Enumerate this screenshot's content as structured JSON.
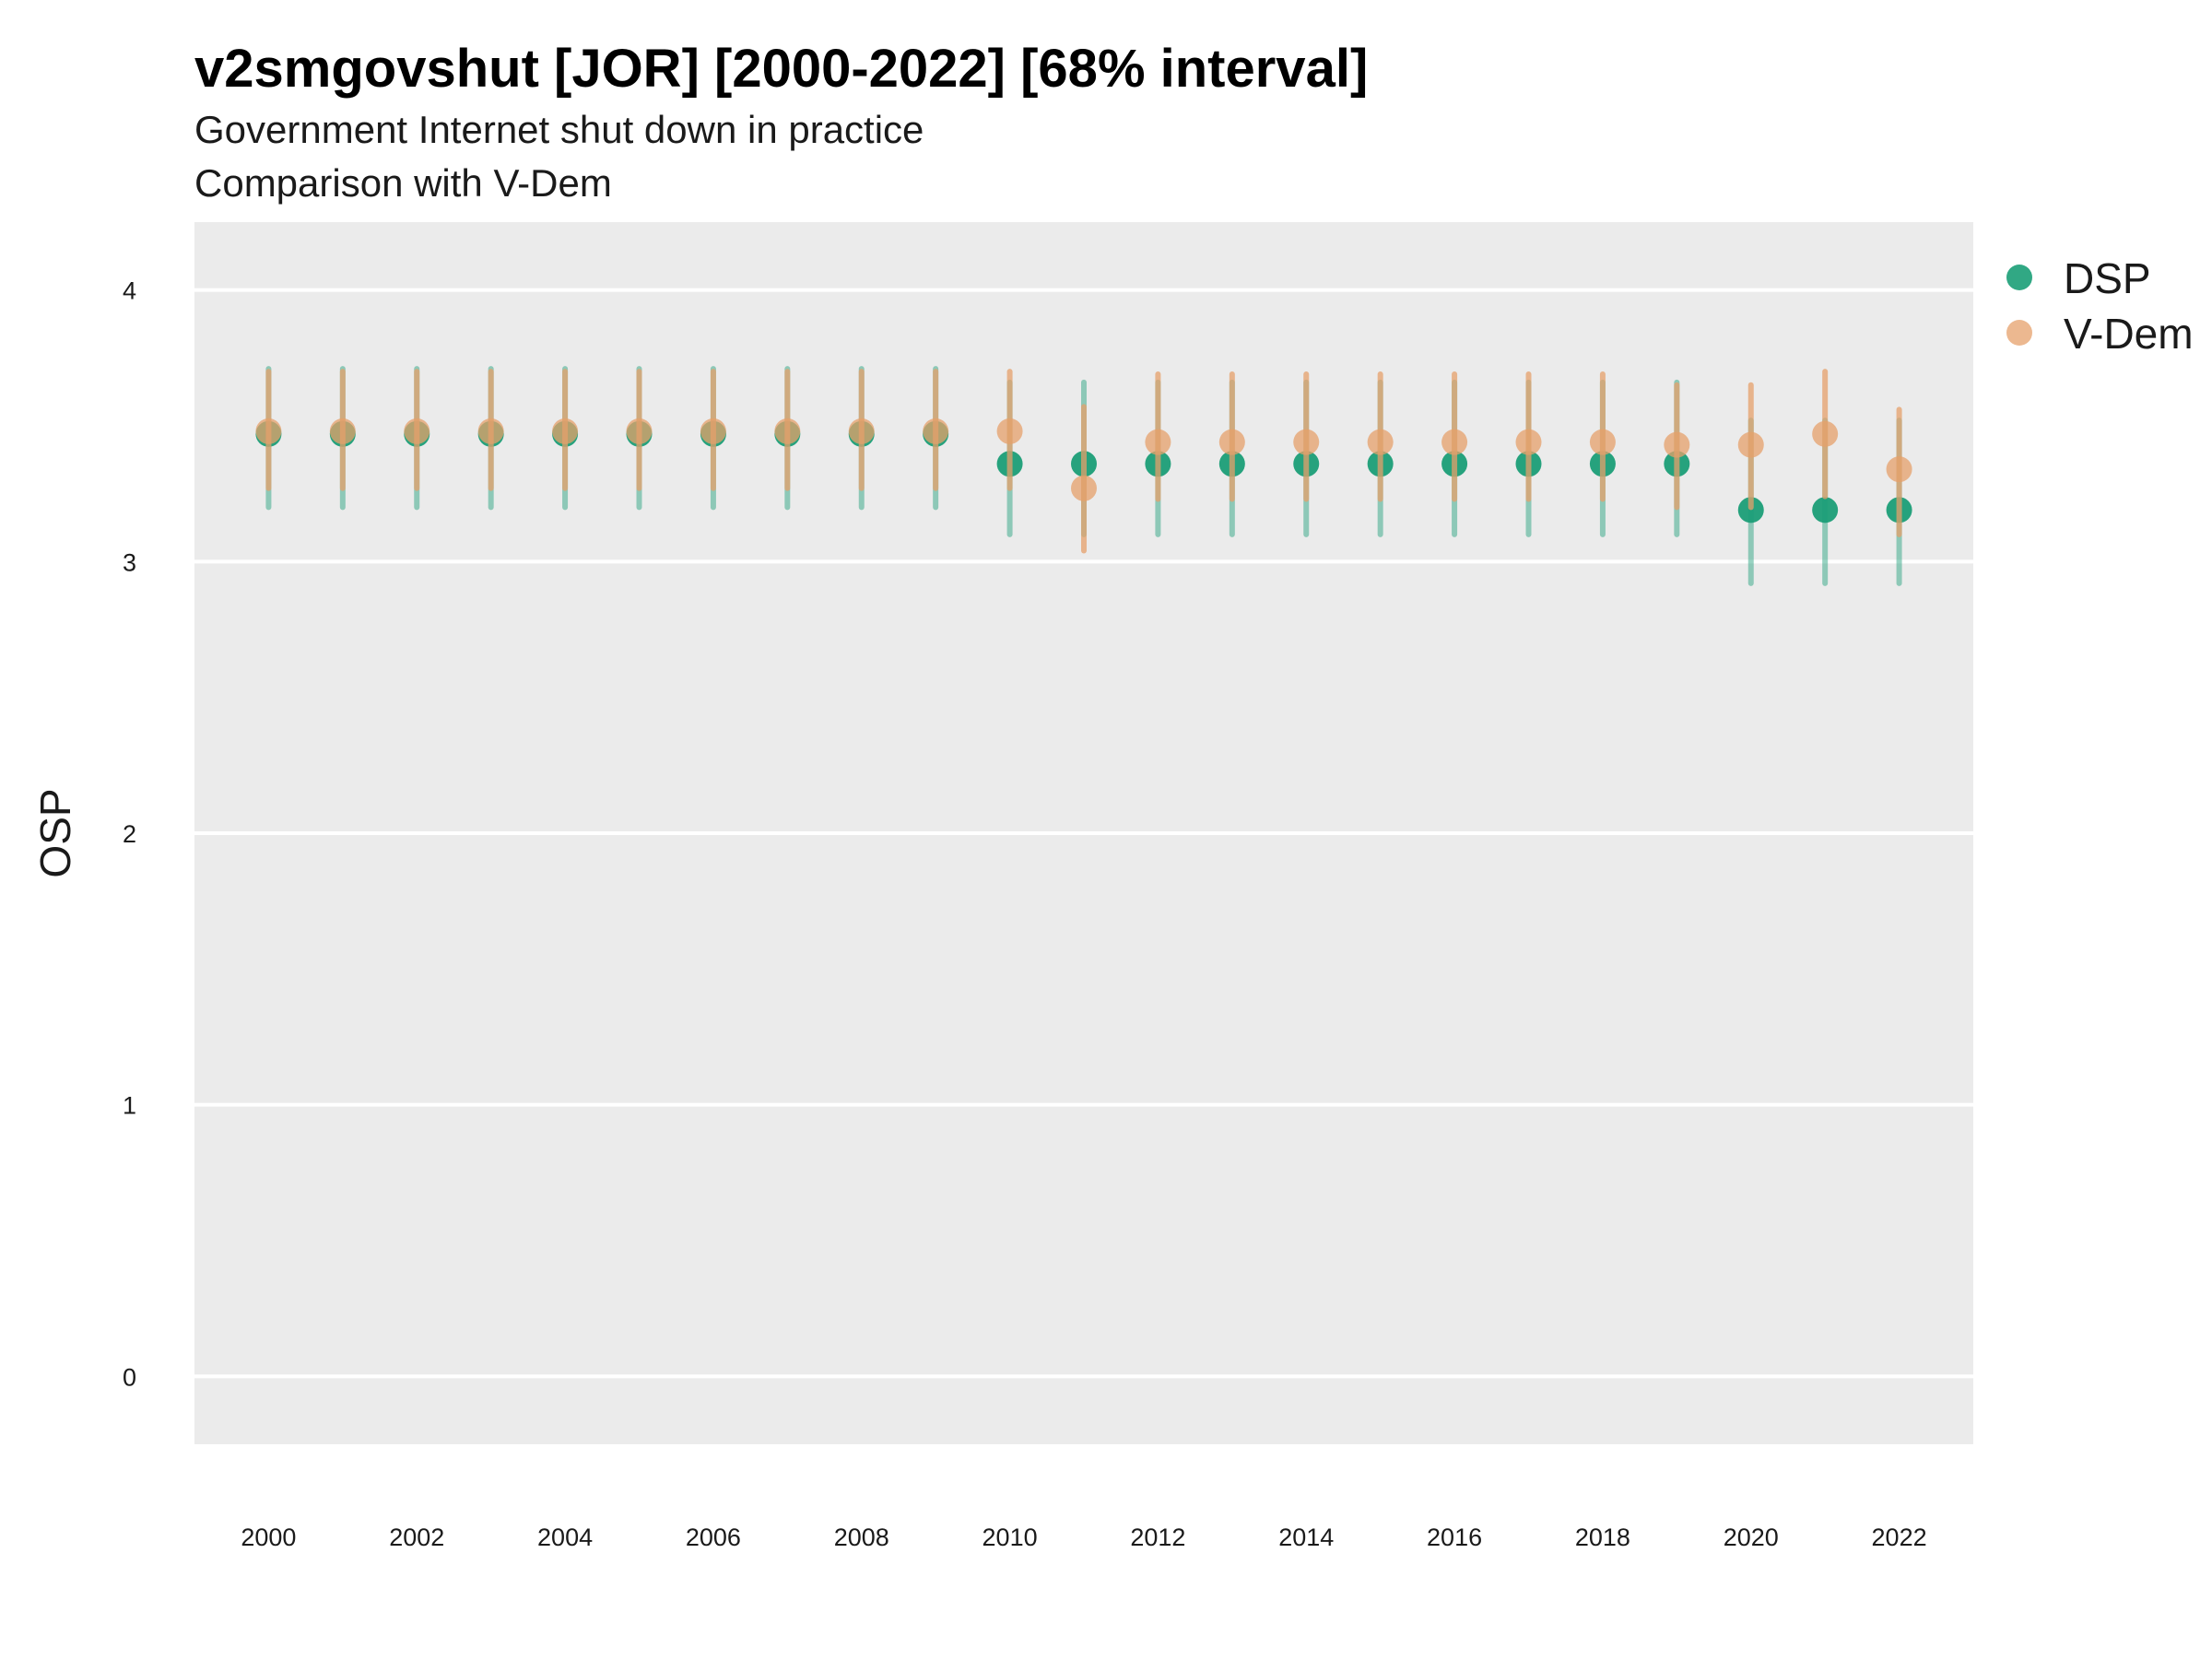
{
  "chart_data": {
    "type": "scatter",
    "title": "v2smgovshut [JOR] [2000-2022] [68% interval]",
    "subtitle": "Government Internet shut down in practice",
    "subtitle2": "Comparison with V-Dem",
    "ylabel": "OSP",
    "xlabel": "",
    "ylim": [
      -0.25,
      4.25
    ],
    "xlim": [
      1999.0,
      2023.0
    ],
    "yticks": [
      0,
      1,
      2,
      3,
      4
    ],
    "xticks": [
      2000,
      2002,
      2004,
      2006,
      2008,
      2010,
      2012,
      2014,
      2016,
      2018,
      2020,
      2022
    ],
    "grid": true,
    "legend_position": "right",
    "colors": {
      "DSP": "#1b9e77",
      "V-Dem": "#e6a06b",
      "panel": "#ebebeb",
      "grid": "#ffffff"
    },
    "x": [
      2000,
      2001,
      2002,
      2003,
      2004,
      2005,
      2006,
      2007,
      2008,
      2009,
      2010,
      2011,
      2012,
      2013,
      2014,
      2015,
      2016,
      2017,
      2018,
      2019,
      2020,
      2021,
      2022
    ],
    "series": [
      {
        "name": "DSP",
        "values": [
          3.47,
          3.47,
          3.47,
          3.47,
          3.47,
          3.47,
          3.47,
          3.47,
          3.47,
          3.47,
          3.36,
          3.36,
          3.36,
          3.36,
          3.36,
          3.36,
          3.36,
          3.36,
          3.36,
          3.36,
          3.19,
          3.19,
          3.19
        ],
        "lower": [
          3.2,
          3.2,
          3.2,
          3.2,
          3.2,
          3.2,
          3.2,
          3.2,
          3.2,
          3.2,
          3.1,
          3.1,
          3.1,
          3.1,
          3.1,
          3.1,
          3.1,
          3.1,
          3.1,
          3.1,
          2.92,
          2.92,
          2.92
        ],
        "upper": [
          3.71,
          3.71,
          3.71,
          3.71,
          3.71,
          3.71,
          3.71,
          3.71,
          3.71,
          3.71,
          3.66,
          3.66,
          3.66,
          3.66,
          3.66,
          3.66,
          3.66,
          3.66,
          3.66,
          3.66,
          3.52,
          3.52,
          3.52
        ]
      },
      {
        "name": "V-Dem",
        "values": [
          3.48,
          3.48,
          3.48,
          3.48,
          3.48,
          3.48,
          3.48,
          3.48,
          3.48,
          3.48,
          3.48,
          3.27,
          3.44,
          3.44,
          3.44,
          3.44,
          3.44,
          3.44,
          3.44,
          3.43,
          3.43,
          3.47,
          3.34
        ],
        "lower": [
          3.27,
          3.27,
          3.27,
          3.27,
          3.27,
          3.27,
          3.27,
          3.27,
          3.27,
          3.27,
          3.27,
          3.04,
          3.23,
          3.23,
          3.23,
          3.23,
          3.23,
          3.23,
          3.23,
          3.2,
          3.2,
          3.24,
          3.1
        ],
        "upper": [
          3.7,
          3.7,
          3.7,
          3.7,
          3.7,
          3.7,
          3.7,
          3.7,
          3.7,
          3.7,
          3.7,
          3.57,
          3.69,
          3.69,
          3.69,
          3.69,
          3.69,
          3.69,
          3.69,
          3.65,
          3.65,
          3.7,
          3.56
        ]
      }
    ]
  }
}
